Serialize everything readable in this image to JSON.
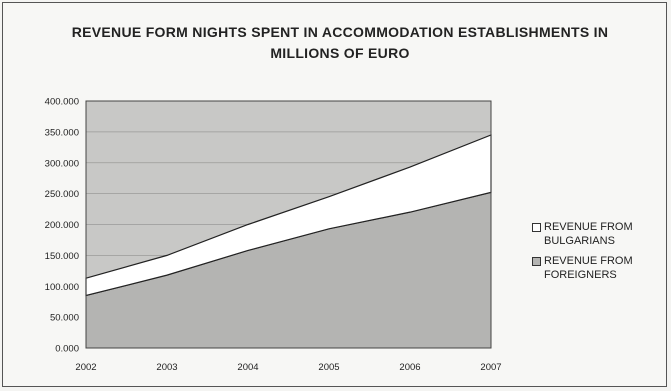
{
  "chart_data": {
    "type": "area",
    "stacked": true,
    "title": "REVENUE FORM NIGHTS SPENT IN ACCOMMODATION ESTABLISHMENTS IN MILLIONS OF EURO",
    "categories": [
      "2002",
      "2003",
      "2004",
      "2005",
      "2006",
      "2007"
    ],
    "series": [
      {
        "name": "REVENUE FROM FOREIGNERS",
        "values": [
          85000,
          118000,
          158000,
          193000,
          220000,
          252000
        ],
        "color": "#b4b4b2"
      },
      {
        "name": "REVENUE FROM BULGARIANS",
        "values": [
          28000,
          32000,
          42000,
          52000,
          73000,
          93000
        ],
        "color": "#ffffff"
      }
    ],
    "yticks": [
      "400.000",
      "350.000",
      "300.000",
      "250.000",
      "200.000",
      "150.000",
      "100.000",
      "50.000",
      "0.000"
    ],
    "ylim": [
      0,
      400000
    ],
    "grid": true,
    "legend_position": "right",
    "plot_background": "#c8c8c6"
  }
}
